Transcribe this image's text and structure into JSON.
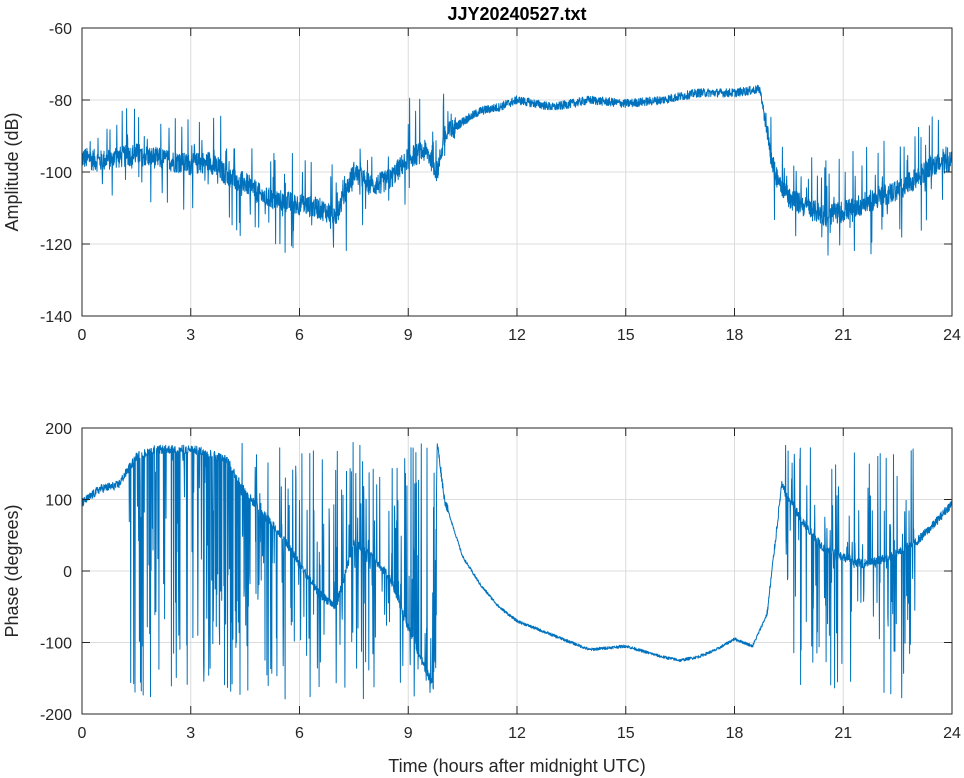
{
  "chart_data": [
    {
      "type": "line",
      "title": "JJY20240527.txt",
      "xlabel": "",
      "ylabel": "Amplitude (dB)",
      "xlim": [
        0,
        24
      ],
      "ylim": [
        -140,
        -60
      ],
      "xticks": [
        "0",
        "3",
        "6",
        "9",
        "12",
        "15",
        "18",
        "21",
        "24"
      ],
      "yticks": [
        "-140",
        "-120",
        "-100",
        "-80",
        "-60"
      ],
      "grid": true,
      "color": "#0072BD",
      "series": [
        {
          "x": [
            0,
            0.5,
            1,
            1.5,
            2,
            2.5,
            3,
            3.5,
            4,
            4.5,
            5,
            5.5,
            6,
            6.5,
            7,
            7.5,
            8,
            8.5,
            9,
            9.5,
            9.8,
            10,
            10.5,
            11,
            11.5,
            12,
            13,
            14,
            15,
            16,
            17,
            18,
            18.7,
            18.9,
            19.1,
            19.5,
            20,
            20.5,
            21,
            21.5,
            22,
            22.5,
            23,
            23.5,
            24
          ],
          "values": [
            -96,
            -97,
            -96,
            -95,
            -96,
            -97,
            -98,
            -97,
            -101,
            -103,
            -107,
            -108,
            -109,
            -110,
            -112,
            -100,
            -104,
            -102,
            -96,
            -94,
            -100,
            -90,
            -86,
            -83,
            -82,
            -80,
            -82,
            -80,
            -81,
            -80,
            -78,
            -78,
            -77,
            -88,
            -100,
            -107,
            -110,
            -112,
            -111,
            -109,
            -107,
            -105,
            -102,
            -98,
            -97
          ]
        }
      ]
    },
    {
      "type": "line",
      "title": "",
      "xlabel": "Time (hours after midnight UTC)",
      "ylabel": "Phase (degrees)",
      "xlim": [
        0,
        24
      ],
      "ylim": [
        -200,
        200
      ],
      "xticks": [
        "0",
        "3",
        "6",
        "9",
        "12",
        "15",
        "18",
        "21",
        "24"
      ],
      "yticks": [
        "-200",
        "-100",
        "0",
        "100",
        "200"
      ],
      "grid": true,
      "color": "#0072BD",
      "series": [
        {
          "x": [
            0,
            0.5,
            1,
            1.5,
            2,
            2.5,
            3,
            3.5,
            4,
            4.5,
            5,
            5.5,
            6,
            6.5,
            7,
            7.5,
            8,
            8.5,
            9,
            9.5,
            9.7,
            9.8,
            10,
            10.5,
            11,
            11.5,
            12,
            13,
            14,
            15,
            16,
            16.5,
            17,
            17.5,
            18,
            18.5,
            18.9,
            19.3,
            19.5,
            20,
            20.5,
            21,
            21.5,
            22,
            22.5,
            23,
            23.5,
            24
          ],
          "values": [
            95,
            115,
            120,
            160,
            170,
            170,
            170,
            165,
            155,
            110,
            80,
            50,
            10,
            -30,
            -50,
            40,
            20,
            -10,
            -80,
            -140,
            -160,
            180,
            100,
            20,
            -20,
            -50,
            -70,
            -90,
            -110,
            -105,
            -120,
            -125,
            -120,
            -110,
            -95,
            -105,
            -60,
            120,
            100,
            60,
            30,
            20,
            10,
            15,
            25,
            40,
            65,
            95
          ]
        }
      ]
    }
  ]
}
